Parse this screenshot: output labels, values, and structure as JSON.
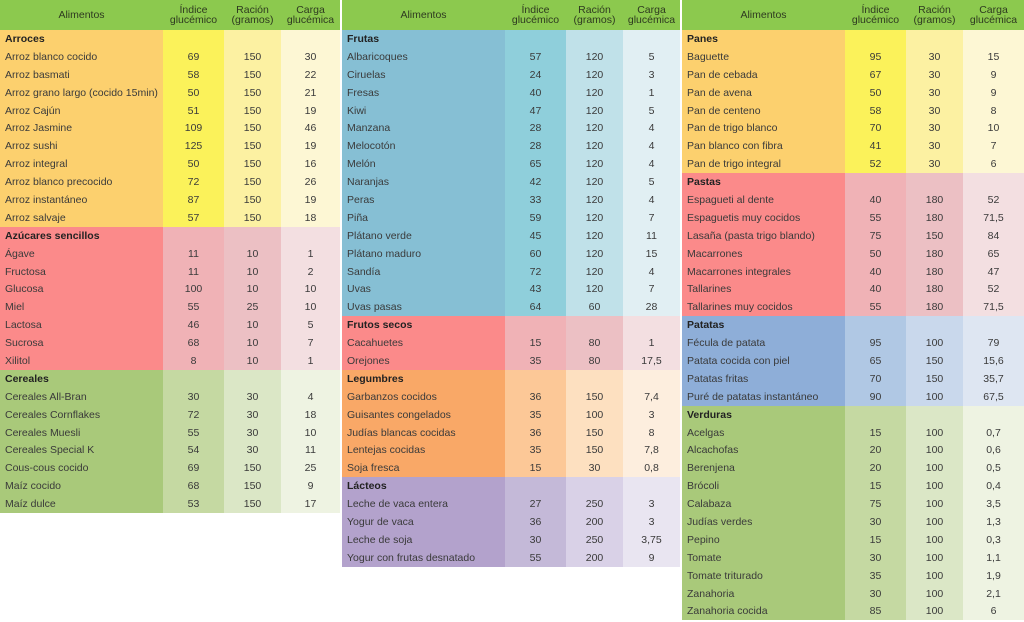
{
  "headers": {
    "food": "Alimentos",
    "gi": "Índice glucémico",
    "portion": "Ración (gramos)",
    "load": "Carga glucémica"
  },
  "panels": [
    {
      "sections": [
        {
          "name": "Arroces",
          "colors": [
            "#fcd06e",
            "#fbf25a",
            "#fcf1a2",
            "#fdf7d4"
          ],
          "rows": [
            [
              "Arroz blanco cocido",
              "69",
              "150",
              "30"
            ],
            [
              "Arroz basmati",
              "58",
              "150",
              "22"
            ],
            [
              "Arroz grano largo (cocido 15min)",
              "50",
              "150",
              "21"
            ],
            [
              "Arroz Cajún",
              "51",
              "150",
              "19"
            ],
            [
              "Arroz Jasmine",
              "109",
              "150",
              "46"
            ],
            [
              "Arroz sushi",
              "125",
              "150",
              "19"
            ],
            [
              "Arroz integral",
              "50",
              "150",
              "16"
            ],
            [
              "Arroz blanco precocido",
              "72",
              "150",
              "26"
            ],
            [
              "Arroz instantáneo",
              "87",
              "150",
              "19"
            ],
            [
              "Arroz salvaje",
              "57",
              "150",
              "18"
            ]
          ]
        },
        {
          "name": "Azúcares sencillos",
          "colors": [
            "#fb8a8a",
            "#f0b2b6",
            "#ecc0c4",
            "#f3dfe1"
          ],
          "rows": [
            [
              "Ágave",
              "11",
              "10",
              "1"
            ],
            [
              "Fructosa",
              "11",
              "10",
              "2"
            ],
            [
              "Glucosa",
              "100",
              "10",
              "10"
            ],
            [
              "Miel",
              "55",
              "25",
              "10"
            ],
            [
              "Lactosa",
              "46",
              "10",
              "5"
            ],
            [
              "Sucrosa",
              "68",
              "10",
              "7"
            ],
            [
              "Xilitol",
              "8",
              "10",
              "1"
            ]
          ]
        },
        {
          "name": "Cereales",
          "colors": [
            "#a9c97a",
            "#c5d9a2",
            "#dbe7c6",
            "#eef3e2"
          ],
          "rows": [
            [
              "Cereales All-Bran",
              "30",
              "30",
              "4"
            ],
            [
              "Cereales Cornflakes",
              "72",
              "30",
              "18"
            ],
            [
              "Cereales Muesli",
              "55",
              "30",
              "10"
            ],
            [
              "Cereales Special K",
              "54",
              "30",
              "11"
            ],
            [
              "Cous-cous cocido",
              "69",
              "150",
              "25"
            ],
            [
              "Maíz cocido",
              "68",
              "150",
              "9"
            ],
            [
              "Maíz dulce",
              "53",
              "150",
              "17"
            ]
          ]
        }
      ]
    },
    {
      "sections": [
        {
          "name": "Frutas",
          "colors": [
            "#86bfd4",
            "#8fcfdb",
            "#c0e1e9",
            "#e1eff3"
          ],
          "rows": [
            [
              "Albaricoques",
              "57",
              "120",
              "5"
            ],
            [
              "Ciruelas",
              "24",
              "120",
              "3"
            ],
            [
              "Fresas",
              "40",
              "120",
              "1"
            ],
            [
              "Kiwi",
              "47",
              "120",
              "5"
            ],
            [
              "Manzana",
              "28",
              "120",
              "4"
            ],
            [
              "Melocotón",
              "28",
              "120",
              "4"
            ],
            [
              "Melón",
              "65",
              "120",
              "4"
            ],
            [
              "Naranjas",
              "42",
              "120",
              "5"
            ],
            [
              "Peras",
              "33",
              "120",
              "4"
            ],
            [
              "Piña",
              "59",
              "120",
              "7"
            ],
            [
              "Plátano verde",
              "45",
              "120",
              "11"
            ],
            [
              "Plátano maduro",
              "60",
              "120",
              "15"
            ],
            [
              "Sandía",
              "72",
              "120",
              "4"
            ],
            [
              "Uvas",
              "43",
              "120",
              "7"
            ],
            [
              "Uvas pasas",
              "64",
              "60",
              "28"
            ]
          ]
        },
        {
          "name": "Frutos secos",
          "colors": [
            "#fb8a8a",
            "#f0b2b6",
            "#ecc0c4",
            "#f3dfe1"
          ],
          "rows": [
            [
              "Cacahuetes",
              "15",
              "80",
              "1"
            ],
            [
              "Orejones",
              "35",
              "80",
              "17,5"
            ]
          ]
        },
        {
          "name": "Legumbres",
          "colors": [
            "#f9a867",
            "#fcc897",
            "#fde0c0",
            "#fdeede"
          ],
          "rows": [
            [
              "Garbanzos cocidos",
              "36",
              "150",
              "7,4"
            ],
            [
              "Guisantes congelados",
              "35",
              "100",
              "3"
            ],
            [
              "Judías blancas cocidas",
              "36",
              "150",
              "8"
            ],
            [
              "Lentejas cocidas",
              "35",
              "150",
              "7,8"
            ],
            [
              "Soja fresca",
              "15",
              "30",
              "0,8"
            ]
          ]
        },
        {
          "name": "Lácteos",
          "colors": [
            "#b3a2cc",
            "#c4b9d8",
            "#d9d1e7",
            "#e9e5f1"
          ],
          "rows": [
            [
              "Leche de vaca entera",
              "27",
              "250",
              "3"
            ],
            [
              "Yogur de vaca",
              "36",
              "200",
              "3"
            ],
            [
              "Leche de soja",
              "30",
              "250",
              "3,75"
            ],
            [
              "Yogur con frutas desnatado",
              "55",
              "200",
              "9"
            ]
          ]
        }
      ]
    },
    {
      "sections": [
        {
          "name": "Panes",
          "colors": [
            "#fcd06e",
            "#fbf25a",
            "#fcf1a2",
            "#fdf7d4"
          ],
          "rows": [
            [
              "Baguette",
              "95",
              "30",
              "15"
            ],
            [
              "Pan de cebada",
              "67",
              "30",
              "9"
            ],
            [
              "Pan de avena",
              "50",
              "30",
              "9"
            ],
            [
              "Pan de centeno",
              "58",
              "30",
              "8"
            ],
            [
              "Pan de trigo blanco",
              "70",
              "30",
              "10"
            ],
            [
              "Pan blanco con fibra",
              "41",
              "30",
              "7"
            ],
            [
              "Pan de trigo integral",
              "52",
              "30",
              "6"
            ]
          ]
        },
        {
          "name": "Pastas",
          "colors": [
            "#fb8a8a",
            "#f0b2b6",
            "#ecc0c4",
            "#f3dfe1"
          ],
          "rows": [
            [
              "Espagueti al dente",
              "40",
              "180",
              "52"
            ],
            [
              "Espaguetis muy cocidos",
              "55",
              "180",
              "71,5"
            ],
            [
              "Lasaña (pasta trigo blando)",
              "75",
              "150",
              "84"
            ],
            [
              "Macarrones",
              "50",
              "180",
              "65"
            ],
            [
              "Macarrones integrales",
              "40",
              "180",
              "47"
            ],
            [
              "Tallarines",
              "40",
              "180",
              "52"
            ],
            [
              "Tallarines muy cocidos",
              "55",
              "180",
              "71,5"
            ]
          ]
        },
        {
          "name": "Patatas",
          "colors": [
            "#8eaed8",
            "#b0c8e4",
            "#c9d8ec",
            "#dee6f2"
          ],
          "rows": [
            [
              "Fécula de patata",
              "95",
              "100",
              "79"
            ],
            [
              "Patata cocida con piel",
              "65",
              "150",
              "15,6"
            ],
            [
              "Patatas fritas",
              "70",
              "150",
              "35,7"
            ],
            [
              "Puré de patatas instantáneo",
              "90",
              "100",
              "67,5"
            ]
          ]
        },
        {
          "name": "Verduras",
          "colors": [
            "#a9c97a",
            "#c5d9a2",
            "#dbe7c6",
            "#eef3e2"
          ],
          "rows": [
            [
              "Acelgas",
              "15",
              "100",
              "0,7"
            ],
            [
              "Alcachofas",
              "20",
              "100",
              "0,6"
            ],
            [
              "Berenjena",
              "20",
              "100",
              "0,5"
            ],
            [
              "Brócoli",
              "15",
              "100",
              "0,4"
            ],
            [
              "Calabaza",
              "75",
              "100",
              "3,5"
            ],
            [
              "Judías verdes",
              "30",
              "100",
              "1,3"
            ],
            [
              "Pepino",
              "15",
              "100",
              "0,3"
            ],
            [
              "Tomate",
              "30",
              "100",
              "1,1"
            ],
            [
              "Tomate triturado",
              "35",
              "100",
              "1,9"
            ],
            [
              "Zanahoria",
              "30",
              "100",
              "2,1"
            ],
            [
              "Zanahoria cocida",
              "85",
              "100",
              "6"
            ]
          ]
        }
      ]
    }
  ]
}
